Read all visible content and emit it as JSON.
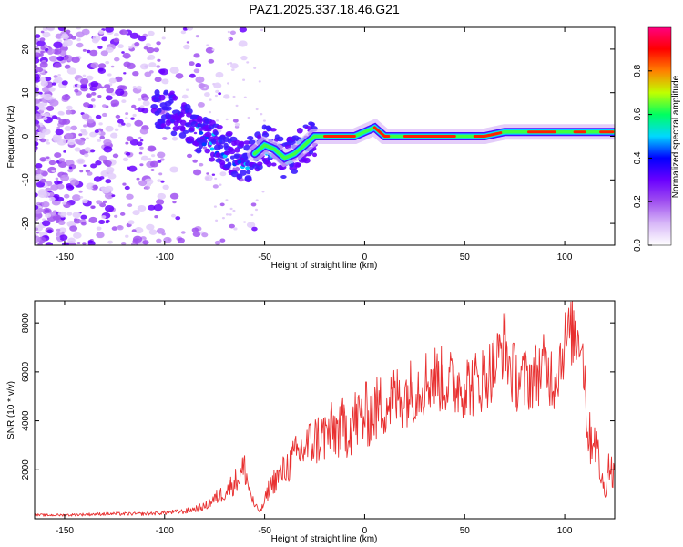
{
  "page_title": "PAZ1.2025.337.18.46.G21",
  "chart_data": [
    {
      "type": "heatmap",
      "title": "PAZ1.2025.337.18.46.G21",
      "xlabel": "Height of straight line (km)",
      "ylabel": "Frequency (Hz)",
      "xlim": [
        -165,
        125
      ],
      "ylim": [
        -25,
        25
      ],
      "xticks": [
        -150,
        -100,
        -50,
        0,
        50,
        100
      ],
      "yticks": [
        -20,
        -10,
        0,
        10,
        20
      ],
      "ridge": {
        "x": [
          -100,
          -90,
          -80,
          -70,
          -60,
          -50,
          -45,
          -40,
          -35,
          -30,
          -25,
          -20,
          -15,
          -10,
          -5,
          0,
          5,
          10,
          20,
          40,
          60,
          70,
          80,
          90,
          100,
          110,
          125
        ],
        "y": [
          6,
          4,
          0,
          -3,
          -6,
          -2,
          -3,
          -5,
          -4,
          -2,
          0,
          0,
          0,
          0,
          0,
          1,
          2,
          0,
          0,
          0,
          0,
          1,
          1,
          1,
          1,
          1,
          1
        ]
      },
      "colorbar": {
        "label": "Normalized spectral amplitude",
        "range": [
          0,
          1
        ],
        "ticks": [
          "0.0",
          "0.2",
          "0.4",
          "0.6",
          "0.8"
        ],
        "colors": [
          "#ffffff",
          "#d8b8f8",
          "#a050f0",
          "#6a00ff",
          "#0000ff",
          "#00d8ff",
          "#00ff60",
          "#c0ff00",
          "#ff8000",
          "#ff0000",
          "#ff0080"
        ]
      }
    },
    {
      "type": "line",
      "xlabel": "Height of straight line (km)",
      "ylabel": "SNR (10 * v/v)",
      "xlim": [
        -165,
        125
      ],
      "ylim": [
        0,
        8900
      ],
      "xticks": [
        -150,
        -100,
        -50,
        0,
        50,
        100
      ],
      "yticks": [
        2000,
        4000,
        6000,
        8000
      ],
      "series": [
        {
          "name": "SNR",
          "color": "#e83030",
          "x": [
            -165,
            -150,
            -130,
            -110,
            -100,
            -90,
            -85,
            -80,
            -75,
            -70,
            -65,
            -62,
            -60,
            -58,
            -55,
            -52,
            -50,
            -48,
            -45,
            -42,
            -40,
            -35,
            -30,
            -25,
            -20,
            -15,
            -10,
            -5,
            0,
            5,
            10,
            15,
            20,
            25,
            30,
            35,
            40,
            45,
            50,
            55,
            60,
            65,
            70,
            72,
            75,
            80,
            85,
            90,
            95,
            100,
            103,
            106,
            108,
            110,
            112,
            115,
            118,
            120,
            122,
            125
          ],
          "y": [
            150,
            150,
            200,
            200,
            250,
            300,
            400,
            500,
            800,
            1100,
            1500,
            1800,
            2100,
            1300,
            500,
            300,
            700,
            1200,
            1600,
            1800,
            2000,
            2500,
            2900,
            3200,
            3400,
            3600,
            3700,
            4000,
            4200,
            4400,
            4700,
            4900,
            5100,
            5300,
            5600,
            5800,
            5600,
            5500,
            5500,
            5500,
            5800,
            6200,
            7300,
            6300,
            5800,
            5600,
            5900,
            6200,
            5700,
            7200,
            7600,
            7400,
            7700,
            5800,
            3200,
            3500,
            1800,
            1100,
            2200,
            1800
          ]
        }
      ]
    }
  ]
}
